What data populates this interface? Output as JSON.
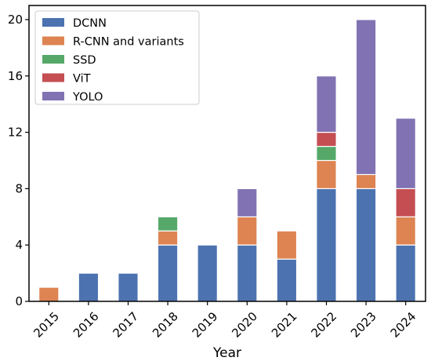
{
  "chart_data": {
    "type": "bar",
    "stacked": true,
    "title": "",
    "xlabel": "Year",
    "ylabel": "",
    "categories": [
      "2015",
      "2016",
      "2017",
      "2018",
      "2019",
      "2020",
      "2021",
      "2022",
      "2023",
      "2024"
    ],
    "ylim": [
      0,
      21
    ],
    "yticks": [
      0,
      4,
      8,
      12,
      16,
      20
    ],
    "grid": false,
    "legend_position": "top-left",
    "series": [
      {
        "name": "DCNN",
        "color": "#4c72b0",
        "values": [
          0,
          2,
          2,
          4,
          4,
          4,
          3,
          8,
          8,
          4
        ]
      },
      {
        "name": "R-CNN and variants",
        "color": "#dd8452",
        "values": [
          1,
          0,
          0,
          1,
          0,
          2,
          2,
          2,
          1,
          2
        ]
      },
      {
        "name": "SSD",
        "color": "#55a868",
        "values": [
          0,
          0,
          0,
          1,
          0,
          0,
          0,
          1,
          0,
          0
        ]
      },
      {
        "name": "ViT",
        "color": "#c44e52",
        "values": [
          0,
          0,
          0,
          0,
          0,
          0,
          0,
          1,
          0,
          2
        ]
      },
      {
        "name": "YOLO",
        "color": "#8172b3",
        "values": [
          0,
          0,
          0,
          0,
          0,
          2,
          0,
          4,
          11,
          5
        ]
      }
    ]
  }
}
